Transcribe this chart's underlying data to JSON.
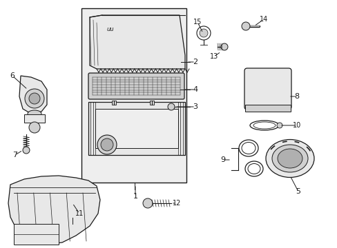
{
  "bg_color": "#ffffff",
  "line_color": "#1a1a1a",
  "gray_light": "#e8e8e8",
  "gray_mid": "#d0d0d0",
  "gray_dark": "#b0b0b0",
  "panel_bg": "#eeeeee",
  "figsize": [
    4.89,
    3.6
  ],
  "dpi": 100
}
